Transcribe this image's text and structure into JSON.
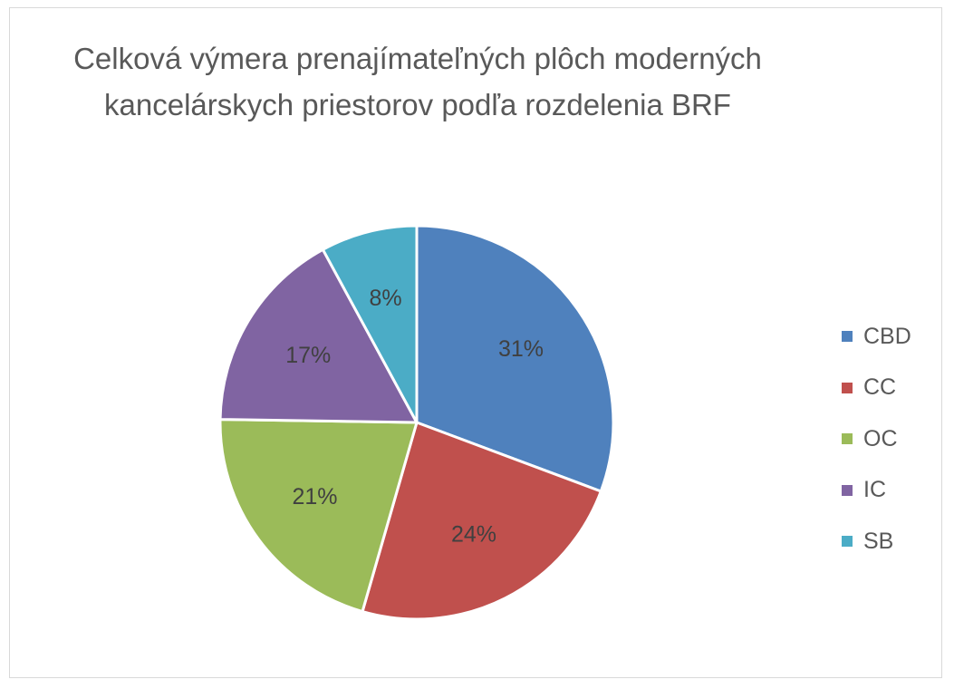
{
  "chart_data": {
    "type": "pie",
    "title": "Celková výmera prenajímateľných plôch moderných kancelárskych priestorov podľa rozdelenia BRF",
    "categories": [
      "CBD",
      "CC",
      "OC",
      "IC",
      "SB"
    ],
    "values": [
      31,
      24,
      21,
      17,
      8
    ],
    "data_labels": [
      "31%",
      "24%",
      "21%",
      "17%",
      "8%"
    ],
    "colors": [
      "#4f81bd",
      "#c0504d",
      "#9bbb59",
      "#8064a2",
      "#4bacc6"
    ],
    "legend_position": "right"
  }
}
